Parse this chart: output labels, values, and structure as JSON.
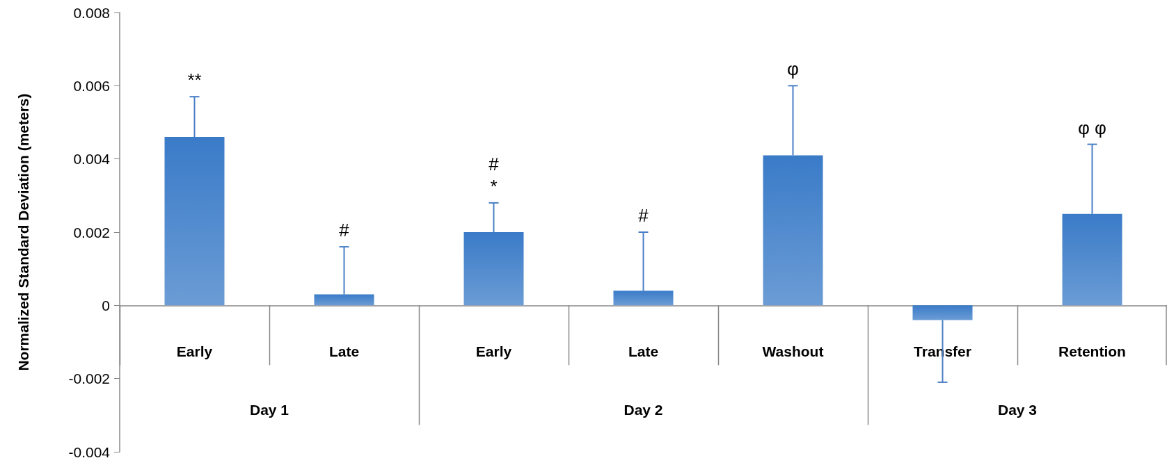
{
  "chart_data": {
    "type": "bar",
    "ylabel": "Normalized Standard Deviation (meters)",
    "categories": [
      "Early",
      "Late",
      "Early",
      "Late",
      "Washout",
      "Transfer",
      "Retention"
    ],
    "values": [
      0.0046,
      0.0003,
      0.002,
      0.0004,
      0.0041,
      -0.0004,
      0.0025
    ],
    "errors": [
      [
        0.0046,
        0.0057
      ],
      [
        0.0003,
        0.0016
      ],
      [
        0.002,
        0.0028
      ],
      [
        0.0004,
        0.002
      ],
      [
        0.0041,
        0.006
      ],
      [
        -0.0021,
        -0.0004
      ],
      [
        0.0025,
        0.0044
      ]
    ],
    "color": "#3a7bc8",
    "ylim": [
      -0.004,
      0.008
    ],
    "yticks": [
      -0.004,
      -0.002,
      0,
      0.002,
      0.004,
      0.006,
      0.008
    ],
    "annotations": [
      {
        "text": "**",
        "x": "Early",
        "y": 0.0057
      },
      {
        "text": "#",
        "x": "Late",
        "y": 0.0016
      },
      "#\n*",
      "#",
      {
        "text": "φ",
        "x": "Washout",
        "y": 0.006
      },
      {
        "text": "φ φ",
        "x": "Retention",
        "y": 0.0044
      },
      "Day 1",
      "Day 2",
      "Day 3"
    ]
  }
}
